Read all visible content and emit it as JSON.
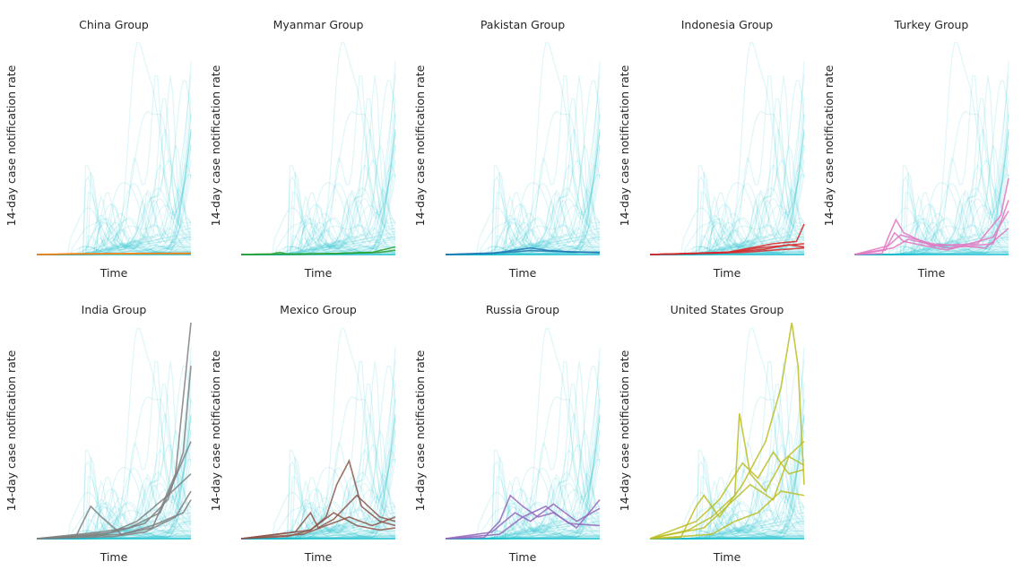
{
  "chart_data": {
    "type": "line",
    "shared_xlabel": "Time",
    "shared_ylabel": "14-day case notification rate",
    "background_series_color": "#17becf",
    "grid": false,
    "note": "Small multiples: each panel highlights one group's countries against all countries (faint cyan). Time runs along x (0 = start, 1 = end of period); y is relative rate, 0 = baseline, 1 = panel top.",
    "panels": [
      {
        "title": "China Group",
        "color": "#ff7f0e",
        "series": [
          [
            [
              0,
              0
            ],
            [
              0.25,
              0.004
            ],
            [
              0.5,
              0.004
            ],
            [
              0.75,
              0.005
            ],
            [
              1,
              0.006
            ]
          ],
          [
            [
              0,
              0
            ],
            [
              0.4,
              0.003
            ],
            [
              0.7,
              0.004
            ],
            [
              1,
              0.004
            ]
          ]
        ]
      },
      {
        "title": "Myanmar Group",
        "color": "#2ca02c",
        "series": [
          [
            [
              0,
              0
            ],
            [
              0.2,
              0.003
            ],
            [
              0.25,
              0.01
            ],
            [
              0.3,
              0.002
            ],
            [
              0.6,
              0.004
            ],
            [
              0.85,
              0.01
            ],
            [
              1,
              0.035
            ]
          ],
          [
            [
              0,
              0
            ],
            [
              0.5,
              0.003
            ],
            [
              0.9,
              0.01
            ],
            [
              1,
              0.02
            ]
          ]
        ]
      },
      {
        "title": "Pakistan Group",
        "color": "#1f77b4",
        "series": [
          [
            [
              0,
              0
            ],
            [
              0.3,
              0.005
            ],
            [
              0.45,
              0.02
            ],
            [
              0.55,
              0.03
            ],
            [
              0.65,
              0.02
            ],
            [
              0.8,
              0.012
            ],
            [
              1,
              0.01
            ]
          ],
          [
            [
              0,
              0
            ],
            [
              0.4,
              0.01
            ],
            [
              0.55,
              0.018
            ],
            [
              0.7,
              0.015
            ],
            [
              1,
              0.008
            ]
          ]
        ]
      },
      {
        "title": "Indonesia Group",
        "color": "#d62728",
        "series": [
          [
            [
              0,
              0
            ],
            [
              0.3,
              0.005
            ],
            [
              0.5,
              0.01
            ],
            [
              0.65,
              0.03
            ],
            [
              0.8,
              0.05
            ],
            [
              0.95,
              0.06
            ],
            [
              1,
              0.14
            ]
          ],
          [
            [
              0,
              0
            ],
            [
              0.5,
              0.008
            ],
            [
              0.7,
              0.03
            ],
            [
              0.85,
              0.04
            ],
            [
              1,
              0.05
            ]
          ],
          [
            [
              0,
              0
            ],
            [
              0.6,
              0.01
            ],
            [
              0.8,
              0.02
            ],
            [
              1,
              0.03
            ]
          ],
          [
            [
              0,
              0
            ],
            [
              0.55,
              0.012
            ],
            [
              0.75,
              0.025
            ],
            [
              0.9,
              0.045
            ],
            [
              1,
              0.035
            ]
          ]
        ]
      },
      {
        "title": "Turkey Group",
        "color": "#e377c2",
        "series": [
          [
            [
              0,
              0
            ],
            [
              0.18,
              0.005
            ],
            [
              0.22,
              0.08
            ],
            [
              0.27,
              0.16
            ],
            [
              0.32,
              0.1
            ],
            [
              0.5,
              0.04
            ],
            [
              0.8,
              0.05
            ],
            [
              0.95,
              0.18
            ],
            [
              1,
              0.35
            ]
          ],
          [
            [
              0,
              0
            ],
            [
              0.2,
              0.02
            ],
            [
              0.26,
              0.1
            ],
            [
              0.32,
              0.06
            ],
            [
              0.6,
              0.02
            ],
            [
              0.9,
              0.08
            ],
            [
              1,
              0.2
            ]
          ],
          [
            [
              0,
              0
            ],
            [
              0.22,
              0.04
            ],
            [
              0.3,
              0.09
            ],
            [
              0.5,
              0.05
            ],
            [
              0.85,
              0.03
            ],
            [
              1,
              0.12
            ]
          ],
          [
            [
              0,
              0
            ],
            [
              0.25,
              0.03
            ],
            [
              0.35,
              0.07
            ],
            [
              0.6,
              0.03
            ],
            [
              0.9,
              0.05
            ],
            [
              1,
              0.25
            ]
          ]
        ]
      },
      {
        "title": "India Group",
        "color": "#7f7f7f",
        "series": [
          [
            [
              0,
              0
            ],
            [
              0.25,
              0.005
            ],
            [
              0.35,
              0.15
            ],
            [
              0.42,
              0.1
            ],
            [
              0.55,
              0.02
            ],
            [
              0.75,
              0.05
            ],
            [
              0.9,
              0.3
            ],
            [
              1,
              1.0
            ]
          ],
          [
            [
              0,
              0
            ],
            [
              0.35,
              0.02
            ],
            [
              0.5,
              0.03
            ],
            [
              0.7,
              0.07
            ],
            [
              0.85,
              0.18
            ],
            [
              0.95,
              0.4
            ],
            [
              1,
              0.8
            ]
          ],
          [
            [
              0,
              0
            ],
            [
              0.4,
              0.03
            ],
            [
              0.6,
              0.05
            ],
            [
              0.8,
              0.12
            ],
            [
              1,
              0.45
            ]
          ],
          [
            [
              0,
              0
            ],
            [
              0.45,
              0.02
            ],
            [
              0.65,
              0.08
            ],
            [
              0.85,
              0.2
            ],
            [
              1,
              0.3
            ]
          ],
          [
            [
              0,
              0
            ],
            [
              0.5,
              0.01
            ],
            [
              0.7,
              0.03
            ],
            [
              0.9,
              0.1
            ],
            [
              1,
              0.22
            ]
          ],
          [
            [
              0,
              0
            ],
            [
              0.55,
              0.02
            ],
            [
              0.75,
              0.06
            ],
            [
              0.95,
              0.12
            ],
            [
              1,
              0.18
            ]
          ]
        ]
      },
      {
        "title": "Mexico Group",
        "color": "#8c564b",
        "series": [
          [
            [
              0,
              0
            ],
            [
              0.3,
              0.01
            ],
            [
              0.45,
              0.04
            ],
            [
              0.55,
              0.1
            ],
            [
              0.62,
              0.25
            ],
            [
              0.7,
              0.36
            ],
            [
              0.78,
              0.15
            ],
            [
              0.9,
              0.08
            ],
            [
              1,
              0.06
            ]
          ],
          [
            [
              0,
              0
            ],
            [
              0.35,
              0.03
            ],
            [
              0.45,
              0.12
            ],
            [
              0.5,
              0.05
            ],
            [
              0.6,
              0.09
            ],
            [
              0.75,
              0.2
            ],
            [
              0.9,
              0.1
            ],
            [
              1,
              0.08
            ]
          ],
          [
            [
              0,
              0
            ],
            [
              0.4,
              0.02
            ],
            [
              0.55,
              0.06
            ],
            [
              0.7,
              0.1
            ],
            [
              0.85,
              0.06
            ],
            [
              1,
              0.1
            ]
          ],
          [
            [
              0,
              0
            ],
            [
              0.45,
              0.04
            ],
            [
              0.6,
              0.12
            ],
            [
              0.75,
              0.06
            ],
            [
              0.9,
              0.04
            ],
            [
              1,
              0.05
            ]
          ]
        ]
      },
      {
        "title": "Russia Group",
        "color": "#9467bd",
        "series": [
          [
            [
              0,
              0
            ],
            [
              0.25,
              0.005
            ],
            [
              0.35,
              0.08
            ],
            [
              0.42,
              0.2
            ],
            [
              0.5,
              0.15
            ],
            [
              0.6,
              0.1
            ],
            [
              0.7,
              0.12
            ],
            [
              0.85,
              0.05
            ],
            [
              1,
              0.18
            ]
          ],
          [
            [
              0,
              0
            ],
            [
              0.3,
              0.03
            ],
            [
              0.45,
              0.12
            ],
            [
              0.55,
              0.08
            ],
            [
              0.7,
              0.16
            ],
            [
              0.85,
              0.08
            ],
            [
              1,
              0.14
            ]
          ],
          [
            [
              0,
              0
            ],
            [
              0.35,
              0.02
            ],
            [
              0.5,
              0.1
            ],
            [
              0.65,
              0.15
            ],
            [
              0.8,
              0.07
            ],
            [
              1,
              0.06
            ]
          ]
        ]
      },
      {
        "title": "United States Group",
        "color": "#bcbd22",
        "series": [
          [
            [
              0,
              0
            ],
            [
              0.2,
              0.005
            ],
            [
              0.3,
              0.15
            ],
            [
              0.35,
              0.2
            ],
            [
              0.45,
              0.1
            ],
            [
              0.6,
              0.25
            ],
            [
              0.75,
              0.45
            ],
            [
              0.85,
              0.7
            ],
            [
              0.92,
              1.0
            ],
            [
              0.96,
              0.8
            ],
            [
              1,
              0.25
            ]
          ],
          [
            [
              0,
              0
            ],
            [
              0.25,
              0.04
            ],
            [
              0.4,
              0.1
            ],
            [
              0.55,
              0.2
            ],
            [
              0.58,
              0.58
            ],
            [
              0.65,
              0.3
            ],
            [
              0.75,
              0.22
            ],
            [
              0.85,
              0.35
            ],
            [
              1,
              0.45
            ]
          ],
          [
            [
              0,
              0
            ],
            [
              0.3,
              0.08
            ],
            [
              0.45,
              0.18
            ],
            [
              0.6,
              0.35
            ],
            [
              0.7,
              0.28
            ],
            [
              0.8,
              0.4
            ],
            [
              0.9,
              0.3
            ],
            [
              1,
              0.32
            ]
          ],
          [
            [
              0,
              0
            ],
            [
              0.35,
              0.05
            ],
            [
              0.5,
              0.15
            ],
            [
              0.65,
              0.25
            ],
            [
              0.8,
              0.18
            ],
            [
              0.9,
              0.38
            ],
            [
              1,
              0.34
            ]
          ],
          [
            [
              0,
              0
            ],
            [
              0.4,
              0.02
            ],
            [
              0.55,
              0.08
            ],
            [
              0.7,
              0.12
            ],
            [
              0.85,
              0.22
            ],
            [
              1,
              0.2
            ]
          ]
        ]
      }
    ]
  }
}
